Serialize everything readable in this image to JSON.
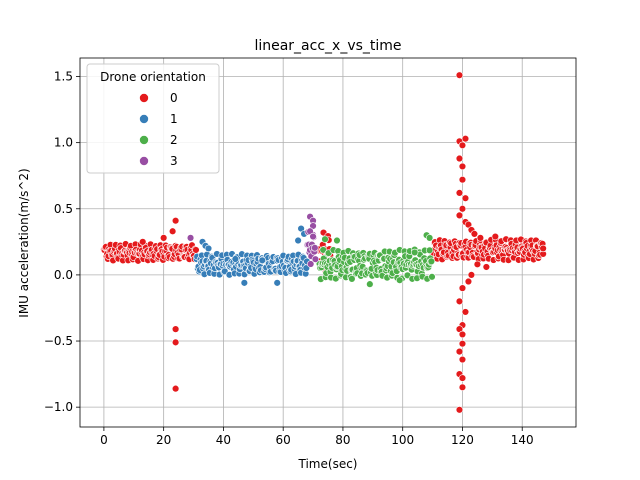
{
  "chart_data": {
    "type": "scatter",
    "title": "linear_acc_x_vs_time",
    "xlabel": "Time(sec)",
    "ylabel": "IMU acceleration(m/s^2)",
    "xlim": [
      -8,
      158
    ],
    "ylim": [
      -1.15,
      1.64
    ],
    "xticks": [
      0,
      20,
      40,
      60,
      80,
      100,
      120,
      140
    ],
    "yticks": [
      -1.0,
      -0.5,
      0.0,
      0.5,
      1.0,
      1.5
    ],
    "ytick_labels": [
      "−1.0",
      "−0.5",
      "0.0",
      "0.5",
      "1.0",
      "1.5"
    ],
    "grid": true,
    "legend": {
      "title": "Drone orientation",
      "placement": "top-left"
    },
    "series": [
      {
        "name": "0",
        "color": "#e41a1c",
        "segments": [
          {
            "t0": 0,
            "t1": 31,
            "base": 0.17,
            "amp": 0.04,
            "step": 0.22
          },
          {
            "t0": 72,
            "t1": 76,
            "base": 0.18,
            "amp": 0.1,
            "step": 0.25
          },
          {
            "t0": 110,
            "t1": 147,
            "base": 0.19,
            "amp": 0.05,
            "step": 0.2
          }
        ],
        "points": [
          {
            "x": 24,
            "y": 0.41
          },
          {
            "x": 24,
            "y": -0.41
          },
          {
            "x": 24,
            "y": -0.51
          },
          {
            "x": 24,
            "y": -0.86
          },
          {
            "x": 23,
            "y": 0.33
          },
          {
            "x": 13,
            "y": 0.25
          },
          {
            "x": 20,
            "y": 0.28
          },
          {
            "x": 119,
            "y": 1.51
          },
          {
            "x": 119,
            "y": 1.01
          },
          {
            "x": 120,
            "y": 0.98
          },
          {
            "x": 121,
            "y": 1.03
          },
          {
            "x": 119,
            "y": 0.88
          },
          {
            "x": 120,
            "y": 0.82
          },
          {
            "x": 120,
            "y": 0.72
          },
          {
            "x": 119,
            "y": 0.62
          },
          {
            "x": 121,
            "y": 0.58
          },
          {
            "x": 120,
            "y": 0.5
          },
          {
            "x": 119,
            "y": 0.45
          },
          {
            "x": 121,
            "y": 0.4
          },
          {
            "x": 122,
            "y": 0.38
          },
          {
            "x": 123,
            "y": 0.34
          },
          {
            "x": 124,
            "y": 0.31
          },
          {
            "x": 126,
            "y": 0.28
          },
          {
            "x": 120,
            "y": -0.1
          },
          {
            "x": 119,
            "y": -0.2
          },
          {
            "x": 121,
            "y": -0.28
          },
          {
            "x": 120,
            "y": -0.38
          },
          {
            "x": 119,
            "y": -0.41
          },
          {
            "x": 120,
            "y": -0.45
          },
          {
            "x": 120,
            "y": -0.52
          },
          {
            "x": 119,
            "y": -0.58
          },
          {
            "x": 120,
            "y": -0.64
          },
          {
            "x": 119,
            "y": -0.75
          },
          {
            "x": 120,
            "y": -0.78
          },
          {
            "x": 120,
            "y": -0.85
          },
          {
            "x": 119,
            "y": -1.02
          },
          {
            "x": 122,
            "y": -0.05
          },
          {
            "x": 123,
            "y": 0.0
          },
          {
            "x": 125,
            "y": 0.08
          },
          {
            "x": 147,
            "y": 0.2
          },
          {
            "x": 131,
            "y": 0.29
          },
          {
            "x": 128,
            "y": 0.06
          }
        ]
      },
      {
        "name": "1",
        "color": "#377eb8",
        "segments": [
          {
            "t0": 31,
            "t1": 68,
            "base": 0.08,
            "amp": 0.05,
            "step": 0.22
          }
        ],
        "points": [
          {
            "x": 33,
            "y": 0.25
          },
          {
            "x": 34,
            "y": 0.22
          },
          {
            "x": 35,
            "y": 0.2
          },
          {
            "x": 47,
            "y": -0.06
          },
          {
            "x": 58,
            "y": -0.06
          },
          {
            "x": 66,
            "y": 0.35
          },
          {
            "x": 67,
            "y": 0.31
          },
          {
            "x": 65,
            "y": 0.26
          },
          {
            "x": 44,
            "y": 0.12
          },
          {
            "x": 53,
            "y": 0.11
          }
        ]
      },
      {
        "name": "2",
        "color": "#4daf4a",
        "segments": [
          {
            "t0": 72,
            "t1": 110,
            "base": 0.08,
            "amp": 0.07,
            "step": 0.2
          }
        ],
        "points": [
          {
            "x": 74,
            "y": 0.27
          },
          {
            "x": 78,
            "y": 0.26
          },
          {
            "x": 83,
            "y": -0.03
          },
          {
            "x": 89,
            "y": -0.07
          },
          {
            "x": 99,
            "y": -0.04
          },
          {
            "x": 108,
            "y": 0.3
          },
          {
            "x": 109,
            "y": 0.28
          },
          {
            "x": 104,
            "y": 0.17
          }
        ]
      },
      {
        "name": "3",
        "color": "#984ea3",
        "segments": [
          {
            "t0": 68,
            "t1": 71,
            "base": 0.2,
            "amp": 0.08,
            "step": 0.2
          }
        ],
        "points": [
          {
            "x": 69,
            "y": 0.44
          },
          {
            "x": 70,
            "y": 0.41
          },
          {
            "x": 70,
            "y": 0.37
          },
          {
            "x": 69,
            "y": 0.33
          },
          {
            "x": 29,
            "y": 0.28
          },
          {
            "x": 70,
            "y": 0.29
          }
        ]
      }
    ]
  }
}
